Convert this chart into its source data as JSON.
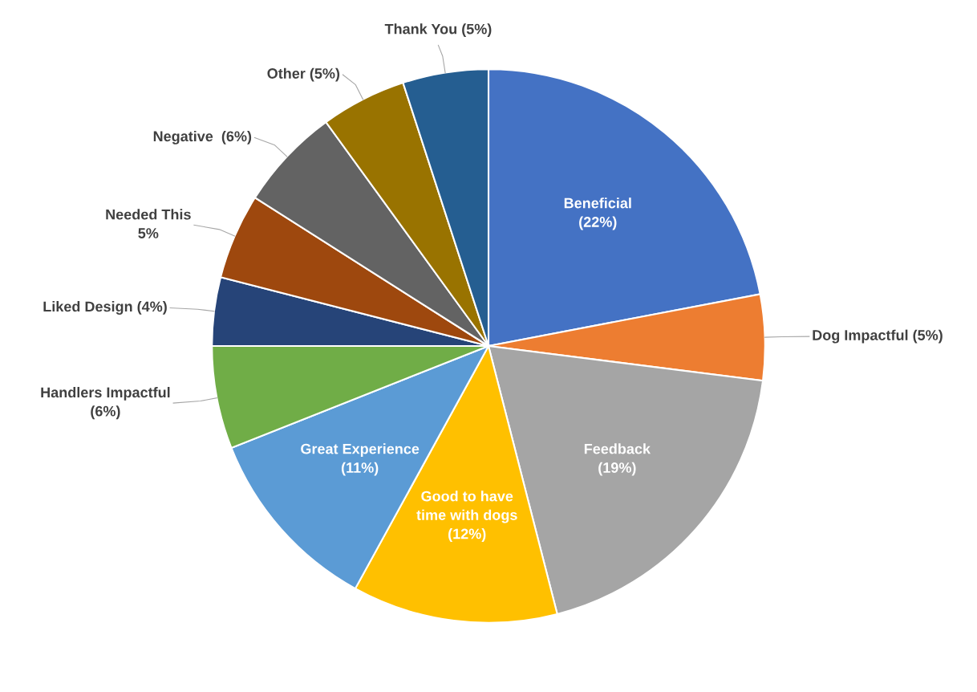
{
  "chart_data": {
    "type": "pie",
    "categories": [
      "Beneficial\n(22%)",
      "Dog Impactful (5%)",
      "Feedback\n(19%)",
      "Good to have\ntime with dogs\n(12%)",
      "Great Experience\n(11%)",
      "Handlers Impactful\n(6%)",
      "Liked Design (4%)",
      "Needed This\n5%",
      "Negative  (6%)",
      "Other (5%)",
      "Thank You (5%)"
    ],
    "values": [
      22,
      5,
      19,
      12,
      11,
      6,
      4,
      5,
      6,
      5,
      5
    ],
    "colors": [
      "#4472c4",
      "#ed7d31",
      "#a5a5a5",
      "#ffc000",
      "#5b9bd5",
      "#70ad47",
      "#264478",
      "#9e480e",
      "#636363",
      "#997300",
      "#255e91"
    ],
    "legend": false
  }
}
